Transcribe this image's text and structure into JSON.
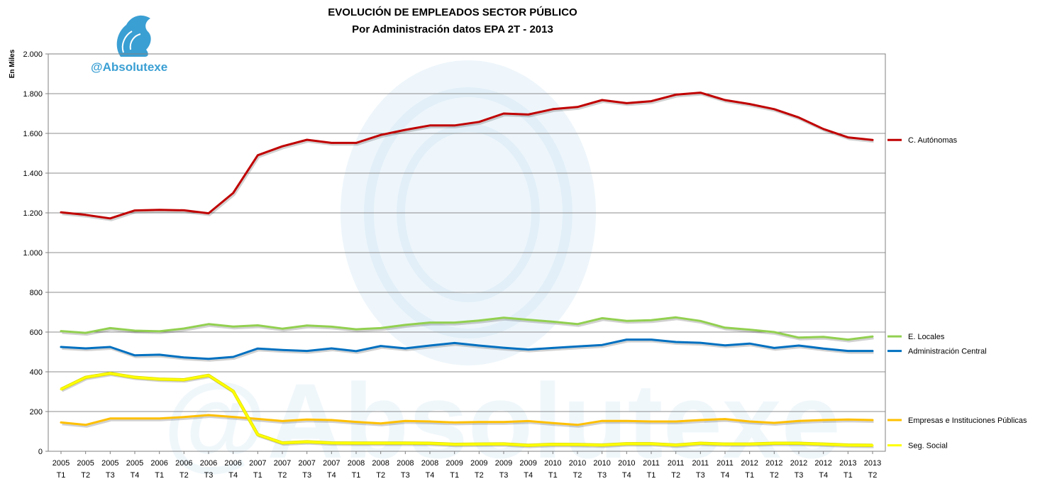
{
  "watermark": {
    "handle": "@Absolutexe"
  },
  "chart_data": {
    "type": "line",
    "title": "EVOLUCIÓN DE EMPLEADOS SECTOR PÚBLICO",
    "subtitle": "Por Administración datos EPA 2T - 2013",
    "ylabel": "En Miles",
    "ylim": [
      0,
      2000
    ],
    "yticks": [
      0,
      200,
      400,
      600,
      800,
      1000,
      1200,
      1400,
      1600,
      1800,
      2000
    ],
    "ytick_labels": [
      "0",
      "200",
      "400",
      "600",
      "800",
      "1.000",
      "1.200",
      "1.400",
      "1.600",
      "1.800",
      "2.000"
    ],
    "grid": true,
    "legend": "right, at series end",
    "categories": [
      [
        "2005",
        "T1"
      ],
      [
        "2005",
        "T2"
      ],
      [
        "2005",
        "T3"
      ],
      [
        "2005",
        "T4"
      ],
      [
        "2006",
        "T1"
      ],
      [
        "2006",
        "T2"
      ],
      [
        "2006",
        "T3"
      ],
      [
        "2006",
        "T4"
      ],
      [
        "2007",
        "T1"
      ],
      [
        "2007",
        "T2"
      ],
      [
        "2007",
        "T3"
      ],
      [
        "2007",
        "T4"
      ],
      [
        "2008",
        "T1"
      ],
      [
        "2008",
        "T2"
      ],
      [
        "2008",
        "T3"
      ],
      [
        "2008",
        "T4"
      ],
      [
        "2009",
        "T1"
      ],
      [
        "2009",
        "T2"
      ],
      [
        "2009",
        "T3"
      ],
      [
        "2009",
        "T4"
      ],
      [
        "2010",
        "T1"
      ],
      [
        "2010",
        "T2"
      ],
      [
        "2010",
        "T3"
      ],
      [
        "2010",
        "T4"
      ],
      [
        "2011",
        "T1"
      ],
      [
        "2011",
        "T2"
      ],
      [
        "2011",
        "T3"
      ],
      [
        "2011",
        "T4"
      ],
      [
        "2012",
        "T1"
      ],
      [
        "2012",
        "T2"
      ],
      [
        "2012",
        "T3"
      ],
      [
        "2012",
        "T4"
      ],
      [
        "2013",
        "T1"
      ],
      [
        "2013",
        "T2"
      ]
    ],
    "series": [
      {
        "name": "C. Autónomas",
        "color": "#c00000",
        "values": [
          1203,
          1190,
          1172,
          1212,
          1215,
          1213,
          1198,
          1300,
          1490,
          1535,
          1568,
          1552,
          1552,
          1592,
          1618,
          1640,
          1640,
          1658,
          1700,
          1695,
          1722,
          1733,
          1768,
          1752,
          1762,
          1795,
          1805,
          1768,
          1748,
          1722,
          1680,
          1622,
          1580,
          1567
        ]
      },
      {
        "name": "E. Locales",
        "color": "#92d050",
        "values": [
          605,
          596,
          620,
          607,
          604,
          618,
          640,
          628,
          634,
          617,
          633,
          627,
          614,
          620,
          636,
          648,
          648,
          658,
          672,
          662,
          652,
          640,
          670,
          656,
          660,
          674,
          656,
          622,
          612,
          600,
          572,
          576,
          562,
          578
        ]
      },
      {
        "name": "Administración Central",
        "color": "#0070c0",
        "values": [
          525,
          518,
          525,
          483,
          486,
          472,
          465,
          475,
          517,
          510,
          505,
          518,
          504,
          530,
          518,
          532,
          545,
          532,
          521,
          512,
          520,
          528,
          535,
          562,
          562,
          550,
          546,
          533,
          542,
          520,
          532,
          517,
          505,
          505
        ]
      },
      {
        "name": "Empresas e Instituciones Públicas",
        "color": "#ffc000",
        "values": [
          145,
          133,
          165,
          165,
          165,
          172,
          182,
          173,
          163,
          152,
          160,
          157,
          148,
          140,
          153,
          150,
          145,
          147,
          147,
          152,
          142,
          133,
          153,
          153,
          150,
          150,
          157,
          162,
          150,
          143,
          153,
          157,
          160,
          157
        ]
      },
      {
        "name": "Seg. Social",
        "color": "#ffff00",
        "values": [
          312,
          372,
          392,
          372,
          363,
          360,
          382,
          302,
          84,
          42,
          48,
          42,
          41,
          41,
          41,
          40,
          35,
          36,
          37,
          30,
          35,
          34,
          31,
          38,
          38,
          31,
          40,
          36,
          36,
          40,
          40,
          36,
          31,
          30
        ]
      }
    ]
  }
}
